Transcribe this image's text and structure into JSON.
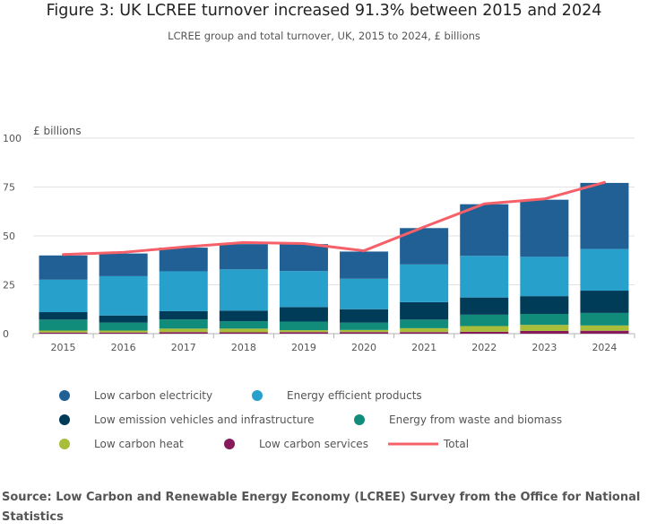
{
  "title": "Figure 3: UK LCREE turnover increased 91.3% between 2015 and 2024",
  "subtitle": "LCREE group and total turnover, UK, 2015 to 2024, £ billions",
  "source": "Source: Low Carbon and Renewable Energy Economy (LCREE) Survey from the Office for National Statistics",
  "chart_data": {
    "type": "bar",
    "stacked": true,
    "ylabel": "£ billions",
    "ylim": [
      0,
      100
    ],
    "yticks": [
      0,
      25,
      50,
      75,
      100
    ],
    "grid": true,
    "legend_position": "bottom",
    "categories": [
      "2015",
      "2016",
      "2017",
      "2018",
      "2019",
      "2020",
      "2021",
      "2022",
      "2023",
      "2024"
    ],
    "series": [
      {
        "name": "Low carbon services",
        "color": "#871A5B",
        "values": [
          0.6,
          0.6,
          0.8,
          0.7,
          0.8,
          0.8,
          0.8,
          1.0,
          1.4,
          1.5
        ]
      },
      {
        "name": "Low carbon heat",
        "color": "#A8BD3A",
        "values": [
          1.0,
          1.0,
          1.8,
          1.9,
          1.0,
          1.1,
          2.0,
          2.9,
          3.1,
          2.7
        ]
      },
      {
        "name": "Energy from waste and biomass",
        "color": "#118C7B",
        "values": [
          5.6,
          4.1,
          4.7,
          3.8,
          4.4,
          3.8,
          4.4,
          5.8,
          5.6,
          6.4
        ]
      },
      {
        "name": "Low emission vehicles and infrastructure",
        "color": "#003C57",
        "values": [
          3.8,
          3.6,
          4.2,
          5.4,
          7.4,
          6.8,
          8.9,
          8.8,
          9.1,
          11.4
        ]
      },
      {
        "name": "Energy efficient products",
        "color": "#27A0CC",
        "values": [
          16.6,
          20.1,
          20.4,
          21.1,
          18.4,
          15.6,
          19.3,
          21.3,
          20.1,
          21.3
        ]
      },
      {
        "name": "Low carbon electricity",
        "color": "#206095",
        "values": [
          12.4,
          11.6,
          12.1,
          12.9,
          13.8,
          13.9,
          18.6,
          26.4,
          29.2,
          33.8
        ]
      }
    ],
    "lines": [
      {
        "name": "Total",
        "color": "#F66068",
        "values": [
          40.5,
          41.6,
          44.3,
          46.6,
          46.1,
          42.4,
          54.6,
          66.4,
          68.9,
          77.4
        ]
      }
    ]
  },
  "legend": [
    {
      "label": "Low carbon electricity",
      "color": "#206095",
      "shape": "circle"
    },
    {
      "label": "Energy efficient products",
      "color": "#27A0CC",
      "shape": "circle"
    },
    {
      "label": "Low emission vehicles and infrastructure",
      "color": "#003C57",
      "shape": "circle"
    },
    {
      "label": "Energy from waste and biomass",
      "color": "#118C7B",
      "shape": "circle"
    },
    {
      "label": "Low carbon heat",
      "color": "#A8BD3A",
      "shape": "circle"
    },
    {
      "label": "Low carbon services",
      "color": "#871A5B",
      "shape": "circle"
    },
    {
      "label": "Total",
      "color": "#F66068",
      "shape": "line"
    }
  ]
}
